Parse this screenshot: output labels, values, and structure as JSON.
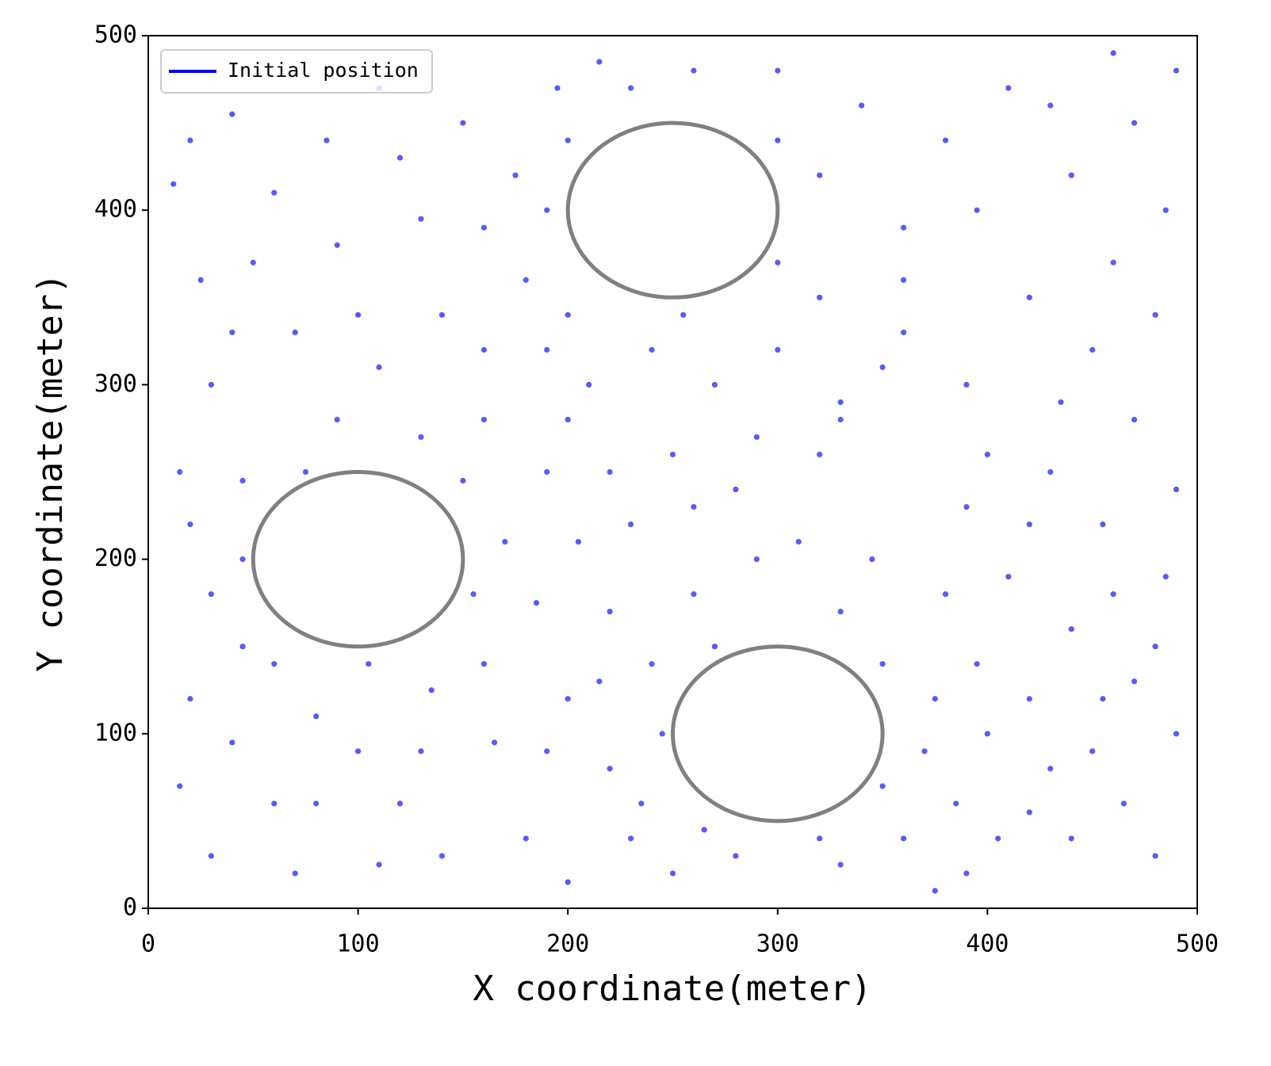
{
  "chart_data": {
    "type": "scatter",
    "xlabel": "X coordinate(meter)",
    "ylabel": "Y coordinate(meter)",
    "xlim": [
      0,
      500
    ],
    "ylim": [
      0,
      500
    ],
    "xticks": [
      0,
      100,
      200,
      300,
      400,
      500
    ],
    "yticks": [
      0,
      100,
      200,
      300,
      400,
      500
    ],
    "legend": "upper left",
    "series": [
      {
        "name": "Initial position",
        "color": "#0000ff",
        "x": [
          12,
          25,
          40,
          60,
          85,
          110,
          130,
          150,
          175,
          195,
          215,
          180,
          140,
          110,
          70,
          30,
          15,
          45,
          30,
          20,
          15,
          30,
          60,
          80,
          100,
          120,
          140,
          165,
          160,
          185,
          170,
          190,
          160,
          130,
          90,
          45,
          200,
          220,
          230,
          250,
          240,
          260,
          230,
          250,
          280,
          310,
          330,
          350,
          370,
          360,
          390,
          420,
          450,
          480,
          470,
          440,
          410,
          390,
          430,
          470,
          450,
          420,
          390,
          360,
          330,
          300,
          270,
          240,
          210,
          200,
          300,
          320,
          340,
          300,
          260,
          230,
          360,
          380,
          410,
          440,
          470,
          485,
          460,
          480,
          435,
          490,
          485,
          455,
          420,
          395,
          380,
          345,
          320,
          290,
          270,
          220,
          205,
          150,
          155,
          135,
          105,
          60,
          40,
          70,
          110,
          180,
          200,
          280,
          330,
          350,
          400,
          440,
          490,
          465,
          405,
          375,
          20,
          50,
          90,
          120,
          160,
          190,
          160,
          100,
          40,
          75,
          20,
          45,
          80,
          130,
          190,
          215,
          245,
          235,
          265,
          320,
          330,
          290,
          260,
          220,
          200,
          255,
          190,
          200,
          300,
          320,
          350,
          400,
          420,
          460,
          480,
          455,
          430,
          385,
          375,
          490,
          460,
          430,
          395,
          360
        ],
        "values": [
          415,
          360,
          455,
          410,
          440,
          470,
          395,
          450,
          420,
          470,
          485,
          360,
          340,
          310,
          330,
          300,
          250,
          245,
          180,
          120,
          70,
          30,
          60,
          110,
          90,
          60,
          30,
          95,
          140,
          175,
          210,
          250,
          280,
          270,
          280,
          200,
          120,
          80,
          40,
          20,
          140,
          180,
          220,
          260,
          240,
          210,
          170,
          140,
          90,
          40,
          20,
          55,
          90,
          30,
          130,
          160,
          190,
          230,
          250,
          280,
          320,
          350,
          300,
          330,
          290,
          320,
          300,
          320,
          300,
          340,
          370,
          420,
          460,
          480,
          480,
          470,
          390,
          440,
          470,
          420,
          450,
          400,
          370,
          340,
          290,
          240,
          190,
          220,
          120,
          140,
          180,
          200,
          260,
          200,
          150,
          170,
          210,
          245,
          180,
          125,
          140,
          140,
          95,
          20,
          25,
          40,
          15,
          30,
          25,
          70,
          100,
          40,
          100,
          60,
          40,
          120,
          440,
          370,
          380,
          430,
          390,
          320,
          320,
          340,
          330,
          250,
          220,
          150,
          60,
          90,
          90,
          130,
          100,
          60,
          45,
          40,
          280,
          270,
          230,
          250,
          280,
          340,
          400,
          440,
          440,
          350,
          310,
          260,
          220,
          180,
          150,
          120,
          80,
          60,
          10,
          480,
          490,
          460,
          400,
          360
        ]
      }
    ],
    "circles": [
      {
        "x": 100,
        "y": 200,
        "r": 50
      },
      {
        "x": 250,
        "y": 400,
        "r": 50
      },
      {
        "x": 300,
        "y": 100,
        "r": 50
      }
    ],
    "circle_color": "#808080"
  }
}
